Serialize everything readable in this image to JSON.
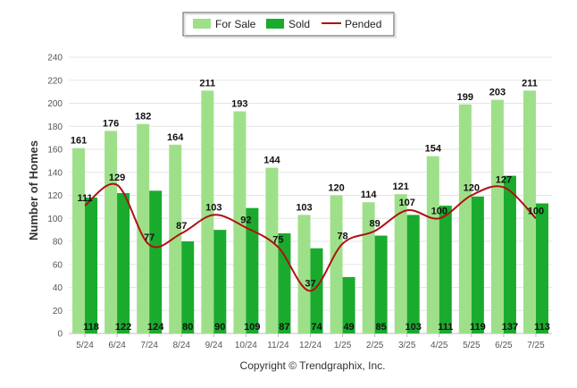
{
  "chart_data": {
    "type": "bar",
    "ylabel": "Number of Homes",
    "xlabel": "",
    "ylim": [
      0,
      240
    ],
    "yticks": [
      0,
      20,
      40,
      60,
      80,
      100,
      120,
      140,
      160,
      180,
      200,
      220,
      240
    ],
    "grid": true,
    "legend_position": "top-center",
    "categories": [
      "5/24",
      "6/24",
      "7/24",
      "8/24",
      "9/24",
      "10/24",
      "11/24",
      "12/24",
      "1/25",
      "2/25",
      "3/25",
      "4/25",
      "5/25",
      "6/25",
      "7/25"
    ],
    "series": [
      {
        "name": "For Sale",
        "type": "bar",
        "color": "#9ee08a",
        "values": [
          161,
          176,
          182,
          164,
          211,
          193,
          144,
          103,
          120,
          114,
          121,
          154,
          199,
          203,
          211
        ]
      },
      {
        "name": "Sold",
        "type": "bar",
        "color": "#1aab2e",
        "values": [
          118,
          122,
          124,
          80,
          90,
          109,
          87,
          74,
          49,
          85,
          103,
          111,
          119,
          137,
          113
        ]
      },
      {
        "name": "Pended",
        "type": "line",
        "color": "#b01010",
        "values": [
          111,
          129,
          77,
          87,
          103,
          92,
          75,
          37,
          78,
          89,
          107,
          100,
          120,
          127,
          100
        ]
      }
    ]
  },
  "footer": {
    "copyright": "Copyright © Trendgraphix, Inc."
  }
}
